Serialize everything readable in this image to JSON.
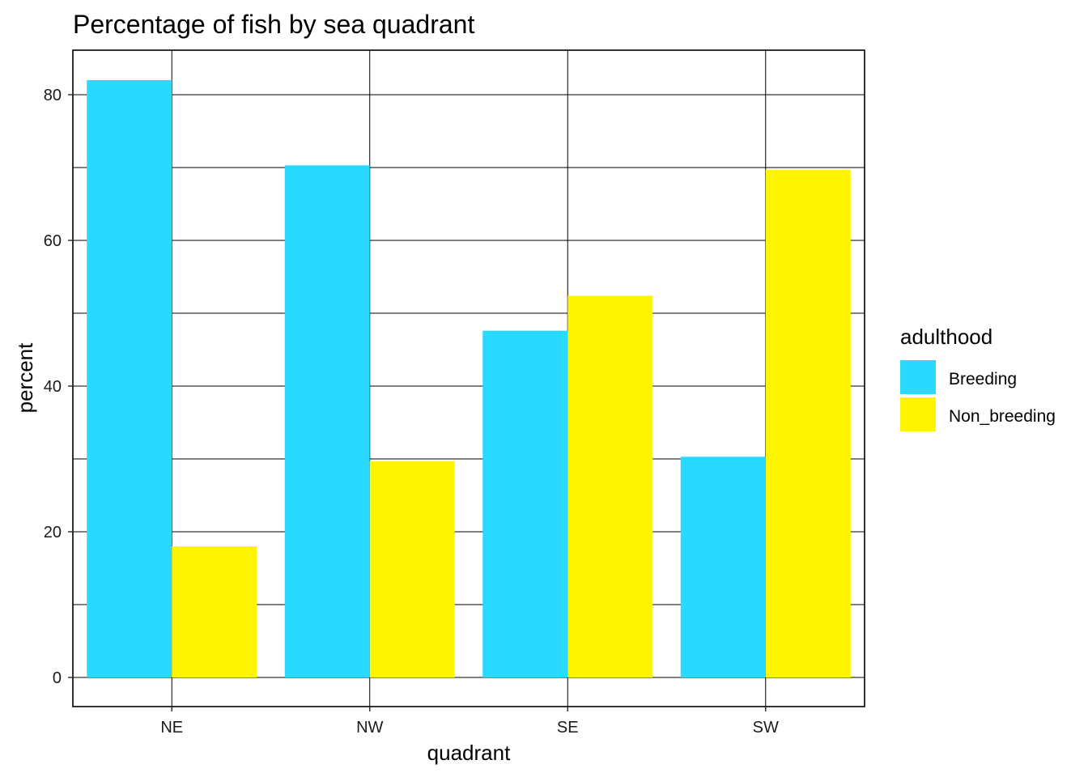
{
  "chart_data": {
    "type": "bar",
    "title": "Percentage of fish by sea quadrant",
    "xlabel": "quadrant",
    "ylabel": "percent",
    "categories": [
      "NE",
      "NW",
      "SE",
      "SW"
    ],
    "series": [
      {
        "name": "Breeding",
        "color": "#29d9ff",
        "values": [
          82.0,
          70.3,
          47.6,
          30.3
        ]
      },
      {
        "name": "Non_breeding",
        "color": "#fff500",
        "values": [
          18.0,
          29.7,
          52.4,
          69.7
        ]
      }
    ],
    "ylim": [
      -4,
      86
    ],
    "yticks": [
      0,
      20,
      40,
      60,
      80
    ],
    "grid": true,
    "legend": {
      "title": "adulthood",
      "position": "right"
    }
  }
}
